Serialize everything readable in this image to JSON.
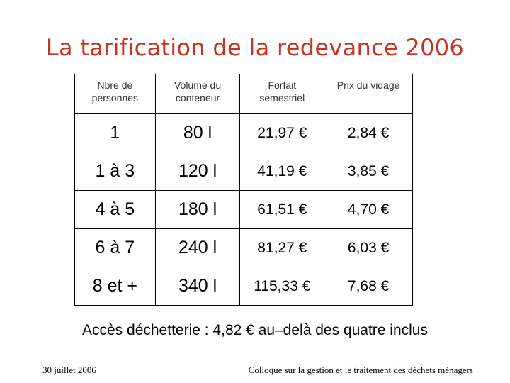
{
  "slide": {
    "title": "La tarification de la redevance 2006",
    "note": "Accès déchetterie : 4,82 € au–delà des quatre inclus",
    "footer_date": "30 juillet 2006",
    "footer_text": "Colloque sur la gestion et le traitement des déchets ménagers",
    "title_color": "#c8321e"
  },
  "table": {
    "headers": [
      [
        "Nbre de",
        "personnes"
      ],
      [
        "Volume du",
        "conteneur"
      ],
      [
        "Forfait",
        "semestriel"
      ],
      [
        "Prix du vidage",
        ""
      ]
    ],
    "rows": [
      [
        "1",
        "80 l",
        "21,97 €",
        "2,84 €"
      ],
      [
        "1 à 3",
        "120 l",
        "41,19 €",
        "3,85 €"
      ],
      [
        "4 à 5",
        "180 l",
        "61,51 €",
        "4,70 €"
      ],
      [
        "6 à 7",
        "240 l",
        "81,27 €",
        "6,03 €"
      ],
      [
        "8 et +",
        "340 l",
        "115,33 €",
        "7,68 €"
      ]
    ]
  }
}
